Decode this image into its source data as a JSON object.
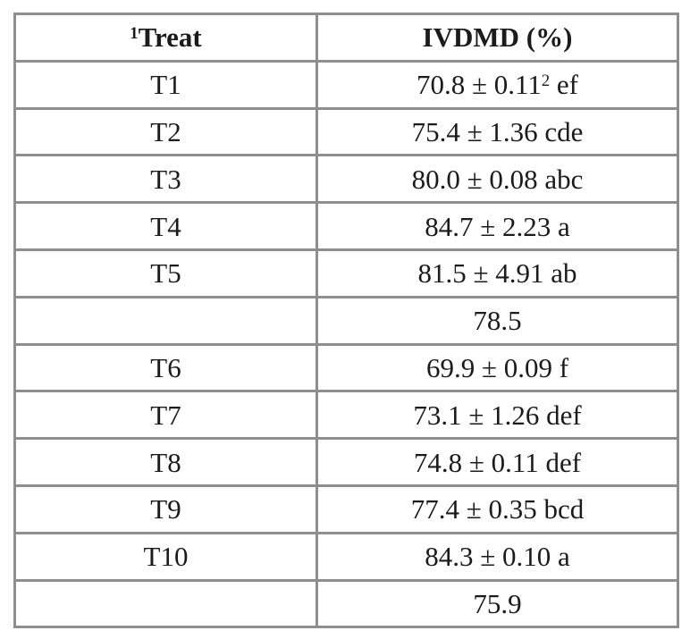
{
  "table": {
    "header": {
      "treat_sup": "1",
      "treat_label": "Treat",
      "value_label": "IVDMD (%)"
    },
    "rows": [
      {
        "treat": "T1",
        "value_pre": "70.8 ± 0.11",
        "value_sup": "2",
        "value_post": " ef"
      },
      {
        "treat": "T2",
        "value": "75.4 ± 1.36 cde"
      },
      {
        "treat": "T3",
        "value": "80.0 ± 0.08 abc"
      },
      {
        "treat": "T4",
        "value": "84.7 ± 2.23 a"
      },
      {
        "treat": "T5",
        "value": "81.5 ± 4.91 ab"
      },
      {
        "treat": "",
        "value": "78.5",
        "mean": true
      },
      {
        "treat": "T6",
        "value": "69.9 ± 0.09 f"
      },
      {
        "treat": "T7",
        "value": "73.1 ± 1.26 def"
      },
      {
        "treat": "T8",
        "value": "74.8 ± 0.11 def"
      },
      {
        "treat": "T9",
        "value": "77.4 ± 0.35 bcd"
      },
      {
        "treat": "T10",
        "value": "84.3 ± 0.10 a"
      },
      {
        "treat": "",
        "value": "75.9",
        "mean": true
      }
    ],
    "colors": {
      "border": "#8e8e8e",
      "text": "#1b1b1b",
      "background": "#ffffff"
    }
  },
  "chart_data": {
    "type": "table",
    "title": "",
    "columns": [
      "Treat",
      "IVDMD (%)"
    ],
    "categories": [
      "T1",
      "T2",
      "T3",
      "T4",
      "T5",
      "T6",
      "T7",
      "T8",
      "T9",
      "T10"
    ],
    "values": [
      70.8,
      75.4,
      80.0,
      84.7,
      81.5,
      69.9,
      73.1,
      74.8,
      77.4,
      84.3
    ],
    "errors": [
      0.11,
      1.36,
      0.08,
      2.23,
      4.91,
      0.09,
      1.26,
      0.11,
      0.35,
      0.1
    ],
    "significance_letters": [
      "ef",
      "cde",
      "abc",
      "a",
      "ab",
      "f",
      "def",
      "def",
      "bcd",
      "a"
    ],
    "group_means": [
      78.5,
      75.9
    ],
    "footnote_markers": {
      "header": "1",
      "first_value": "2"
    }
  }
}
